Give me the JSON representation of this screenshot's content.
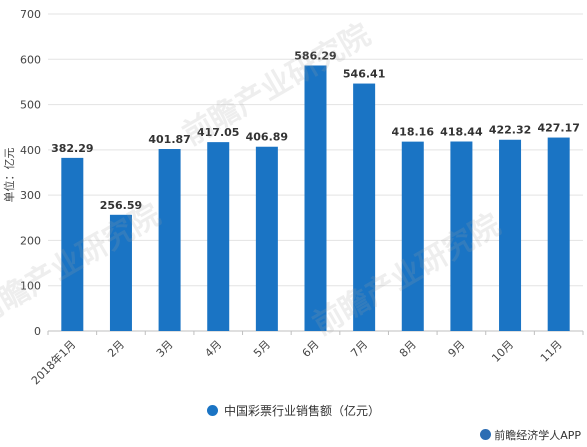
{
  "chart_data": {
    "type": "bar",
    "categories": [
      "2018年1月",
      "2月",
      "3月",
      "4月",
      "5月",
      "6月",
      "7月",
      "8月",
      "9月",
      "10月",
      "11月"
    ],
    "values": [
      382.29,
      256.59,
      401.87,
      417.05,
      406.89,
      586.29,
      546.41,
      418.16,
      418.44,
      422.32,
      427.17
    ],
    "value_labels": [
      "382.29",
      "256.59",
      "401.87",
      "417.05",
      "406.89",
      "586.29",
      "546.41",
      "418.16",
      "418.44",
      "422.32",
      "427.17"
    ],
    "ylabel": "单位：亿元",
    "ylim": [
      0,
      700
    ],
    "yticks": [
      "0",
      "100",
      "200",
      "300",
      "400",
      "500",
      "600",
      "700"
    ],
    "grid": true,
    "legend_position": "bottom",
    "series_name": "中国彩票行业销售额（亿元）",
    "bar_color": "#1a74c4"
  },
  "watermark": "前瞻产业研究院",
  "source": "前瞻经济学人APP"
}
